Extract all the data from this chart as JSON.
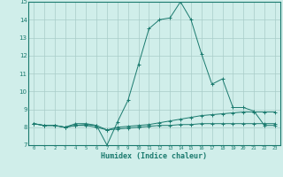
{
  "xlabel": "Humidex (Indice chaleur)",
  "x": [
    0,
    1,
    2,
    3,
    4,
    5,
    6,
    7,
    8,
    9,
    10,
    11,
    12,
    13,
    14,
    15,
    16,
    17,
    18,
    19,
    20,
    21,
    22,
    23
  ],
  "line1": [
    8.2,
    8.1,
    8.1,
    8.0,
    8.1,
    8.1,
    8.0,
    7.85,
    7.9,
    7.95,
    8.0,
    8.05,
    8.1,
    8.1,
    8.15,
    8.15,
    8.2,
    8.2,
    8.2,
    8.2,
    8.2,
    8.2,
    8.2,
    8.2
  ],
  "line2": [
    8.2,
    8.1,
    8.1,
    8.0,
    8.1,
    8.15,
    8.1,
    7.85,
    8.0,
    8.05,
    8.1,
    8.15,
    8.25,
    8.35,
    8.45,
    8.55,
    8.65,
    8.7,
    8.75,
    8.8,
    8.85,
    8.85,
    8.85,
    8.85
  ],
  "line3": [
    8.2,
    8.1,
    8.1,
    8.0,
    8.2,
    8.2,
    8.1,
    7.0,
    8.3,
    9.5,
    11.5,
    13.5,
    14.0,
    14.1,
    15.0,
    14.0,
    12.1,
    10.4,
    10.7,
    9.1,
    9.1,
    8.9,
    8.1,
    8.1
  ],
  "line_color": "#1a7a6e",
  "bg_color": "#d0eeea",
  "grid_color": "#a8ccc8",
  "ylim": [
    7,
    15
  ],
  "xlim": [
    -0.5,
    23.5
  ],
  "yticks": [
    7,
    8,
    9,
    10,
    11,
    12,
    13,
    14,
    15
  ],
  "xticks": [
    0,
    1,
    2,
    3,
    4,
    5,
    6,
    7,
    8,
    9,
    10,
    11,
    12,
    13,
    14,
    15,
    16,
    17,
    18,
    19,
    20,
    21,
    22,
    23
  ],
  "xlabel_fontsize": 6,
  "ylabel_fontsize": 5,
  "xtick_fontsize": 4,
  "ytick_fontsize": 5
}
